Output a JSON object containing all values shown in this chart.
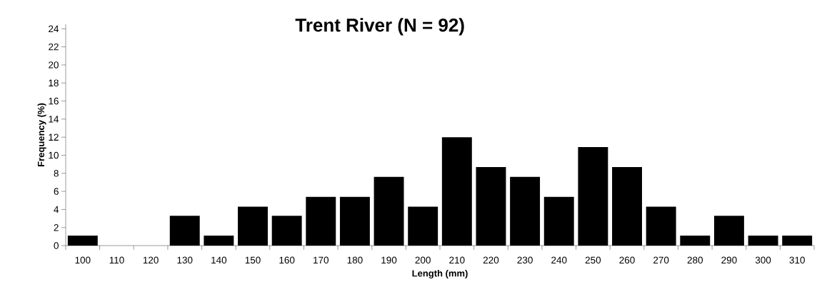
{
  "chart_data": {
    "type": "bar",
    "title": "Trent River (N = 92)",
    "xlabel": "Length (mm)",
    "ylabel": "Frequency (%)",
    "categories": [
      "100",
      "110",
      "120",
      "130",
      "140",
      "150",
      "160",
      "170",
      "180",
      "190",
      "200",
      "210",
      "220",
      "230",
      "240",
      "250",
      "260",
      "270",
      "280",
      "290",
      "300",
      "310"
    ],
    "values": [
      1.1,
      0,
      0,
      3.3,
      1.1,
      4.3,
      3.3,
      5.4,
      5.4,
      7.6,
      4.3,
      12.0,
      8.7,
      7.6,
      5.4,
      10.9,
      8.7,
      4.3,
      1.1,
      3.3,
      1.1,
      1.1
    ],
    "color": "#000000",
    "ylim": [
      0,
      24.5
    ],
    "yticks": [
      0,
      2,
      4,
      6,
      8,
      10,
      12,
      14,
      16,
      18,
      20,
      22,
      24
    ]
  }
}
